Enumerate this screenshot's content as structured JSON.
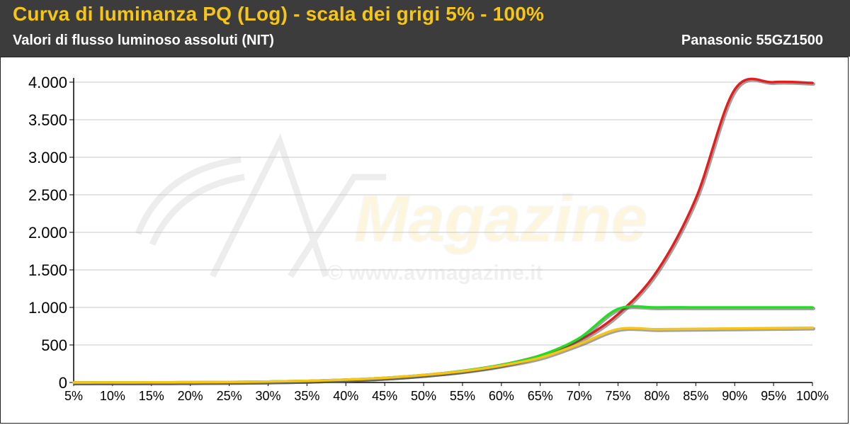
{
  "header": {
    "title": "Curva di luminanza PQ (Log) - scala dei grigi 5% - 100%",
    "subtitle": "Valori di flusso luminoso assoluti (NIT)",
    "model": "Panasonic 55GZ1500"
  },
  "watermark": {
    "brand": "Magazine",
    "url": "© www.avmagazine.it"
  },
  "colors": {
    "header_bg": "#3c3c3c",
    "title": "#f5c518",
    "grid": "#c8c8c8",
    "red": "#e02020",
    "green": "#22dd22",
    "yellow": "#f5c518"
  },
  "chart_data": {
    "type": "line",
    "title": "Curva di luminanza PQ (Log) - scala dei grigi 5% - 100%",
    "subtitle": "Valori di flusso luminoso assoluti (NIT)",
    "xlabel": "",
    "ylabel": "",
    "x": [
      5,
      10,
      15,
      20,
      25,
      30,
      35,
      40,
      45,
      50,
      55,
      60,
      65,
      70,
      75,
      80,
      85,
      90,
      95,
      100
    ],
    "x_tick_labels": [
      "5%",
      "10%",
      "15%",
      "20%",
      "25%",
      "30%",
      "35%",
      "40%",
      "45%",
      "50%",
      "55%",
      "60%",
      "65%",
      "70%",
      "75%",
      "80%",
      "85%",
      "90%",
      "95%",
      "100%"
    ],
    "y_tick_values": [
      0,
      500,
      1000,
      1500,
      2000,
      2500,
      3000,
      3500,
      4000
    ],
    "y_tick_labels": [
      "0",
      "500",
      "1.000",
      "1.500",
      "2.000",
      "2.500",
      "3.000",
      "3.500",
      "4.000"
    ],
    "ylim": [
      0,
      4000
    ],
    "grid": true,
    "legend": "none",
    "series": [
      {
        "color": "#e02020",
        "values": [
          0.3,
          1.0,
          2,
          4,
          7,
          12,
          22,
          38,
          62,
          100,
          155,
          235,
          360,
          560,
          910,
          1480,
          2450,
          3900,
          4000,
          3990
        ]
      },
      {
        "color": "#22dd22",
        "values": [
          0.3,
          1.0,
          2,
          4,
          7,
          12,
          22,
          38,
          62,
          100,
          155,
          235,
          360,
          590,
          980,
          1000,
          1000,
          1000,
          1000,
          1000
        ]
      },
      {
        "color": "#f5c518",
        "values": [
          0.3,
          1.0,
          2,
          4,
          7,
          12,
          22,
          38,
          62,
          100,
          150,
          225,
          330,
          510,
          710,
          710,
          715,
          720,
          725,
          730
        ]
      }
    ]
  }
}
